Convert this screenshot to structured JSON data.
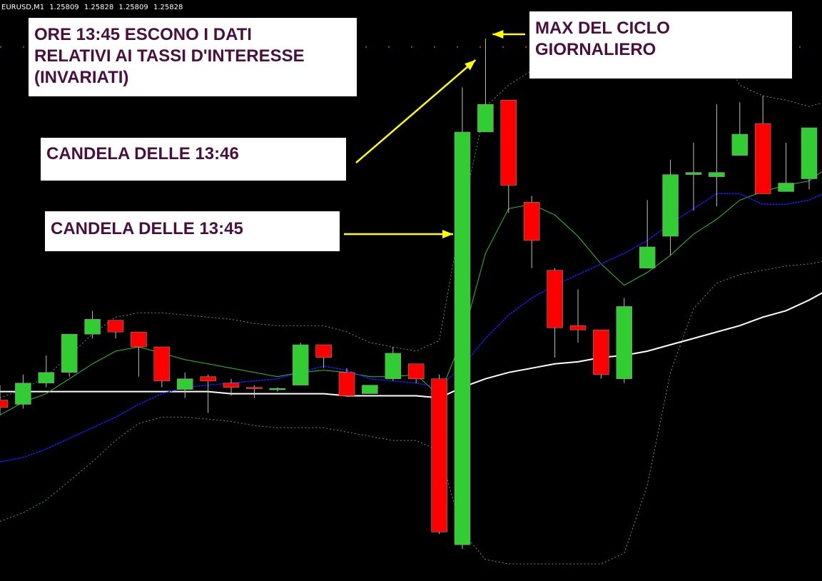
{
  "window": {
    "symbol": "EURUSD,M1",
    "quote": [
      "1.25809",
      "1.25828",
      "1.25809",
      "1.25828"
    ]
  },
  "annotations": {
    "rates_note": [
      "ORE 13:45 ESCONO I DATI",
      "RELATIVI AI TASSI D'INTERESSE",
      "(INVARIATI)"
    ],
    "max_note": [
      "MAX DEL CICLO",
      "GIORNALIERO"
    ],
    "candle_1346": "CANDELA DELLE 13:46",
    "candle_1345": "CANDELA DELLE 13:45"
  },
  "colors": {
    "background": "#000000",
    "bull": "#32cd32",
    "bear": "#ff0000",
    "wick": "#c0c0c0",
    "ma_green": "#2fbf2f",
    "ma_blue": "#1a1aff",
    "ma_white": "#ffffff",
    "bands": "#4d9e82",
    "arrow": "#ffff00",
    "grid_dots": "#b04010",
    "note_text": "#4a0f3c"
  },
  "chart_data": {
    "type": "candlestick",
    "series": [
      {
        "name": "candles",
        "candles": [
          [
            0.07,
            0.035,
            0.14,
            0.0
          ],
          [
            0.05,
            0.15,
            0.19,
            0.03
          ],
          [
            0.15,
            0.2,
            0.28,
            0.13
          ],
          [
            0.2,
            0.38,
            0.38,
            0.18
          ],
          [
            0.38,
            0.45,
            0.49,
            0.36
          ],
          [
            0.445,
            0.39,
            0.445,
            0.36
          ],
          [
            0.39,
            0.32,
            0.39,
            0.18
          ],
          [
            0.32,
            0.16,
            0.32,
            0.13
          ],
          [
            0.12,
            0.17,
            0.2,
            0.08
          ],
          [
            0.18,
            0.16,
            0.19,
            0.01
          ],
          [
            0.15,
            0.13,
            0.17,
            0.09
          ],
          [
            0.13,
            0.125,
            0.14,
            0.08
          ],
          [
            0.12,
            0.125,
            0.13,
            0.11
          ],
          [
            0.14,
            0.33,
            0.34,
            0.14
          ],
          [
            0.33,
            0.27,
            0.33,
            0.22
          ],
          [
            0.2,
            0.09,
            0.22,
            0.09
          ],
          [
            0.1,
            0.14,
            0.14,
            0.1
          ],
          [
            0.17,
            0.29,
            0.32,
            0.16
          ],
          [
            0.24,
            0.17,
            0.24,
            0.15
          ],
          [
            0.17,
            -0.55,
            0.19,
            -0.56
          ],
          [
            -0.61,
            1.33,
            1.54,
            -0.63
          ],
          [
            1.33,
            1.46,
            1.77,
            1.33
          ],
          [
            1.48,
            1.08,
            1.48,
            0.95
          ],
          [
            1.0,
            0.82,
            1.03,
            0.69
          ],
          [
            0.68,
            0.41,
            0.69,
            0.27
          ],
          [
            0.42,
            0.4,
            0.59,
            0.34
          ],
          [
            0.4,
            0.19,
            0.4,
            0.17
          ],
          [
            0.17,
            0.51,
            0.55,
            0.15
          ],
          [
            0.69,
            0.79,
            1.01,
            0.79
          ],
          [
            0.84,
            1.13,
            1.2,
            0.75
          ],
          [
            1.13,
            1.14,
            1.28,
            0.96
          ],
          [
            1.12,
            1.14,
            1.46,
            0.98
          ],
          [
            1.22,
            1.32,
            1.47,
            1.22
          ],
          [
            1.37,
            1.04,
            1.5,
            1.04
          ],
          [
            1.05,
            1.09,
            1.28,
            1.05
          ],
          [
            1.11,
            1.35,
            1.35,
            1.06
          ],
          [
            1.35,
            1.36,
            1.68,
            1.34
          ]
        ]
      },
      {
        "name": "ma_green",
        "values": [
          0.0,
          0.06,
          0.1,
          0.17,
          0.24,
          0.3,
          0.32,
          0.29,
          0.26,
          0.24,
          0.22,
          0.2,
          0.18,
          0.2,
          0.21,
          0.2,
          0.18,
          0.18,
          0.19,
          0.09,
          0.36,
          0.76,
          0.97,
          0.99,
          0.94,
          0.84,
          0.71,
          0.61,
          0.67,
          0.75,
          0.85,
          0.92,
          1.01,
          1.05,
          1.08,
          1.1,
          1.18
        ]
      },
      {
        "name": "ma_blue",
        "values": [
          -0.22,
          -0.2,
          -0.16,
          -0.11,
          -0.06,
          -0.01,
          0.05,
          0.1,
          0.13,
          0.14,
          0.15,
          0.16,
          0.17,
          0.2,
          0.23,
          0.21,
          0.17,
          0.16,
          0.15,
          0.13,
          0.23,
          0.36,
          0.47,
          0.55,
          0.61,
          0.66,
          0.71,
          0.76,
          0.82,
          0.9,
          0.97,
          1.04,
          1.04,
          0.99,
          0.99,
          1.01,
          1.06
        ]
      },
      {
        "name": "ma_white",
        "values": [
          0.11,
          0.11,
          0.11,
          0.11,
          0.11,
          0.11,
          0.11,
          0.11,
          0.11,
          0.11,
          0.1,
          0.1,
          0.1,
          0.1,
          0.1,
          0.09,
          0.09,
          0.09,
          0.09,
          0.08,
          0.13,
          0.17,
          0.2,
          0.22,
          0.24,
          0.25,
          0.27,
          0.28,
          0.3,
          0.33,
          0.36,
          0.39,
          0.42,
          0.46,
          0.49,
          0.54,
          0.6
        ]
      },
      {
        "name": "band_upper",
        "values": [
          0.08,
          0.12,
          0.18,
          0.28,
          0.38,
          0.46,
          0.48,
          0.48,
          0.47,
          0.46,
          0.45,
          0.43,
          0.42,
          0.42,
          0.42,
          0.39,
          0.34,
          0.32,
          0.3,
          0.35,
          0.95,
          1.45,
          1.55,
          1.62,
          1.66,
          1.68,
          1.7,
          1.72,
          1.73,
          1.74,
          1.74,
          1.74,
          1.55,
          1.5,
          1.48,
          1.45,
          1.48
        ]
      },
      {
        "name": "band_lower",
        "values": [
          -0.5,
          -0.46,
          -0.4,
          -0.31,
          -0.22,
          -0.12,
          -0.04,
          -0.01,
          -0.01,
          -0.02,
          -0.03,
          -0.05,
          -0.06,
          -0.06,
          -0.06,
          -0.08,
          -0.1,
          -0.12,
          -0.12,
          -0.17,
          -0.55,
          -0.68,
          -0.7,
          -0.7,
          -0.7,
          -0.7,
          -0.7,
          -0.65,
          -0.33,
          0.2,
          0.5,
          0.62,
          0.66,
          0.68,
          0.7,
          0.71,
          0.73
        ]
      }
    ],
    "x": {
      "count": 37
    },
    "ylim": [
      -0.7,
      1.85
    ],
    "reference_level": 1.73,
    "grid": false
  }
}
